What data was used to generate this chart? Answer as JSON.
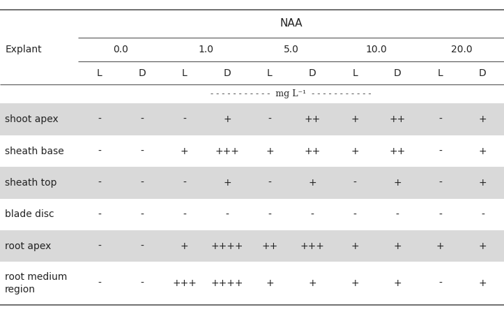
{
  "title": "NAA",
  "explant_label": "Explant",
  "concentrations": [
    "0.0",
    "1.0",
    "5.0",
    "10.0",
    "20.0"
  ],
  "ld_labels": [
    "L",
    "D",
    "L",
    "D",
    "L",
    "D",
    "L",
    "D",
    "L",
    "D"
  ],
  "unit_label": "mg L⁻¹",
  "rows": [
    {
      "name": "shoot apex",
      "values": [
        "-",
        "-",
        "-",
        "+",
        "-",
        "++",
        "+",
        "++",
        "-",
        "+"
      ]
    },
    {
      "name": "sheath base",
      "values": [
        "-",
        "-",
        "+",
        "+++",
        "+",
        "++",
        "+",
        "++",
        "-",
        "+"
      ]
    },
    {
      "name": "sheath top",
      "values": [
        "-",
        "-",
        "-",
        "+",
        "-",
        "+",
        "-",
        "+",
        "-",
        "+"
      ]
    },
    {
      "name": "blade disc",
      "values": [
        "-",
        "-",
        "-",
        "-",
        "-",
        "-",
        "-",
        "-",
        "-",
        "-"
      ]
    },
    {
      "name": "root apex",
      "values": [
        "-",
        "-",
        "+",
        "++++",
        "++",
        "+++",
        "+",
        "+",
        "+",
        "+"
      ]
    },
    {
      "name": "root medium\nregion",
      "values": [
        "-",
        "-",
        "+++",
        "++++",
        "+",
        "+",
        "+",
        "+",
        "-",
        "+"
      ]
    }
  ],
  "shaded_rows": [
    0,
    2,
    4
  ],
  "shade_color": "#d9d9d9",
  "bg_color": "#ffffff",
  "text_color": "#222222",
  "line_color": "#555555",
  "font_size": 10,
  "header_font_size": 10
}
